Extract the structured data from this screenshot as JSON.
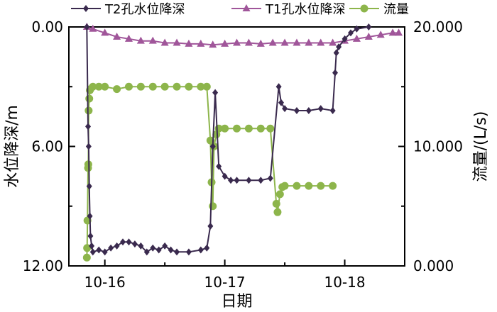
{
  "chart_data": {
    "type": "line",
    "xlabel": "日期",
    "ylabel_left": "水位降深/m",
    "ylabel_right": "流量/(L/s)",
    "x_ticks": [
      "10-16",
      "10-17",
      "10-18"
    ],
    "y_left_ticks": [
      "0.00",
      "6.00",
      "12.00"
    ],
    "y_right_ticks": [
      "20.000",
      "10.000",
      "0.000"
    ],
    "y_left_range": [
      0,
      12
    ],
    "y_left_inverted": true,
    "y_right_range": [
      0,
      20
    ],
    "x_range_days": [
      15.7,
      18.5
    ],
    "legend": [
      "T2孔水位降深",
      "T1孔水位降深",
      "流量"
    ],
    "colors": {
      "T2": "#3a2a4e",
      "T1": "#a0569a",
      "flow": "#8db54b"
    },
    "series": [
      {
        "name": "T2孔水位降深",
        "axis": "left",
        "marker": "diamond",
        "points": [
          [
            15.85,
            0.0
          ],
          [
            15.86,
            5.0
          ],
          [
            15.865,
            6.0
          ],
          [
            15.87,
            8.0
          ],
          [
            15.875,
            9.5
          ],
          [
            15.88,
            10.5
          ],
          [
            15.89,
            11.0
          ],
          [
            15.9,
            11.3
          ],
          [
            15.95,
            11.2
          ],
          [
            16.0,
            11.3
          ],
          [
            16.05,
            11.1
          ],
          [
            16.1,
            11.0
          ],
          [
            16.15,
            10.8
          ],
          [
            16.2,
            10.8
          ],
          [
            16.25,
            10.9
          ],
          [
            16.3,
            11.0
          ],
          [
            16.35,
            11.3
          ],
          [
            16.4,
            11.1
          ],
          [
            16.45,
            11.2
          ],
          [
            16.5,
            11.0
          ],
          [
            16.55,
            11.2
          ],
          [
            16.6,
            11.3
          ],
          [
            16.7,
            11.3
          ],
          [
            16.8,
            11.2
          ],
          [
            16.85,
            11.1
          ],
          [
            16.88,
            10.0
          ],
          [
            16.9,
            6.0
          ],
          [
            16.92,
            3.3
          ],
          [
            16.95,
            7.0
          ],
          [
            17.0,
            7.5
          ],
          [
            17.05,
            7.7
          ],
          [
            17.1,
            7.7
          ],
          [
            17.2,
            7.7
          ],
          [
            17.3,
            7.7
          ],
          [
            17.38,
            7.6
          ],
          [
            17.45,
            3.0
          ],
          [
            17.47,
            3.8
          ],
          [
            17.5,
            4.1
          ],
          [
            17.6,
            4.2
          ],
          [
            17.7,
            4.2
          ],
          [
            17.8,
            4.1
          ],
          [
            17.9,
            4.2
          ],
          [
            17.92,
            2.3
          ],
          [
            17.93,
            1.3
          ],
          [
            17.95,
            1.0
          ],
          [
            18.0,
            0.6
          ],
          [
            18.05,
            0.3
          ],
          [
            18.1,
            0.1
          ],
          [
            18.2,
            0.0
          ]
        ]
      },
      {
        "name": "T1孔水位降深",
        "axis": "left",
        "marker": "triangle",
        "points": [
          [
            15.85,
            0.0
          ],
          [
            15.9,
            0.1
          ],
          [
            16.0,
            0.3
          ],
          [
            16.1,
            0.5
          ],
          [
            16.2,
            0.6
          ],
          [
            16.3,
            0.7
          ],
          [
            16.4,
            0.7
          ],
          [
            16.5,
            0.8
          ],
          [
            16.6,
            0.8
          ],
          [
            16.7,
            0.85
          ],
          [
            16.8,
            0.85
          ],
          [
            16.9,
            0.9
          ],
          [
            17.0,
            0.85
          ],
          [
            17.1,
            0.8
          ],
          [
            17.2,
            0.8
          ],
          [
            17.3,
            0.85
          ],
          [
            17.4,
            0.8
          ],
          [
            17.5,
            0.8
          ],
          [
            17.6,
            0.8
          ],
          [
            17.7,
            0.8
          ],
          [
            17.8,
            0.8
          ],
          [
            17.9,
            0.8
          ],
          [
            18.0,
            0.7
          ],
          [
            18.1,
            0.6
          ],
          [
            18.2,
            0.5
          ],
          [
            18.3,
            0.4
          ],
          [
            18.4,
            0.3
          ],
          [
            18.45,
            0.3
          ]
        ]
      },
      {
        "name": "流量",
        "axis": "right",
        "marker": "circle",
        "points": [
          [
            15.85,
            0.7
          ],
          [
            15.852,
            1.5
          ],
          [
            15.855,
            3.8
          ],
          [
            15.86,
            8.2
          ],
          [
            15.862,
            8.5
          ],
          [
            15.865,
            13.0
          ],
          [
            15.87,
            14.0
          ],
          [
            15.875,
            14.7
          ],
          [
            15.88,
            14.8
          ],
          [
            15.9,
            15.0
          ],
          [
            15.95,
            15.0
          ],
          [
            16.0,
            15.0
          ],
          [
            16.1,
            14.8
          ],
          [
            16.2,
            15.0
          ],
          [
            16.3,
            15.0
          ],
          [
            16.4,
            15.0
          ],
          [
            16.5,
            15.0
          ],
          [
            16.6,
            15.0
          ],
          [
            16.7,
            15.0
          ],
          [
            16.8,
            15.0
          ],
          [
            16.85,
            15.0
          ],
          [
            16.88,
            10.5
          ],
          [
            16.89,
            7.0
          ],
          [
            16.9,
            5.0
          ],
          [
            16.91,
            10.0
          ],
          [
            16.93,
            11.0
          ],
          [
            16.95,
            11.5
          ],
          [
            17.0,
            11.5
          ],
          [
            17.1,
            11.5
          ],
          [
            17.2,
            11.5
          ],
          [
            17.3,
            11.5
          ],
          [
            17.38,
            11.5
          ],
          [
            17.43,
            5.2
          ],
          [
            17.44,
            4.5
          ],
          [
            17.46,
            6.0
          ],
          [
            17.48,
            6.6
          ],
          [
            17.5,
            6.7
          ],
          [
            17.6,
            6.7
          ],
          [
            17.7,
            6.7
          ],
          [
            17.8,
            6.7
          ],
          [
            17.9,
            6.7
          ]
        ]
      }
    ]
  }
}
